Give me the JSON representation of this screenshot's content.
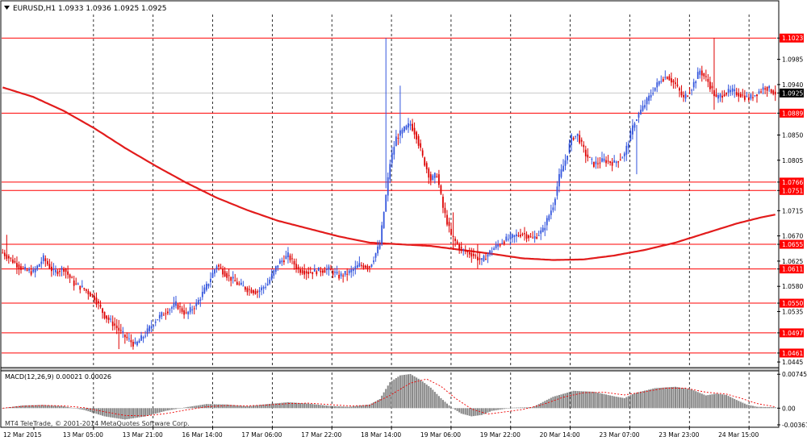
{
  "header": {
    "dropdown_icon": "triangle-down-icon",
    "title": "EURUSD,H1  1.0933 1.0936 1.0925 1.0925"
  },
  "macd": {
    "title": "MACD(12,26,9) 0.00021 0.00026",
    "axis_labels": [
      "0.00745",
      "0.00",
      "-0.00367"
    ]
  },
  "watermark": "MT4 TeleTrade, © 2001-2014 MetaQuotes Software Corp.",
  "colors": {
    "bull_candle": "#3355dd",
    "bear_candle": "#dd0000",
    "level_line": "#ff0000",
    "moving_average": "#e21c1c",
    "macd_histogram": "#888888",
    "macd_signal": "#ee0000",
    "current_price_bg": "#000000",
    "level_label_bg": "#ff0000"
  },
  "chart_data": [
    {
      "type": "candlestick",
      "symbol": "EURUSD",
      "timeframe": "H1",
      "ohlc_current": {
        "open": 1.0933,
        "high": 1.0936,
        "low": 1.0925,
        "close": 1.0925
      },
      "y_ticks": [
        1.1023,
        1.0985,
        1.094,
        1.0925,
        1.0889,
        1.085,
        1.0805,
        1.0766,
        1.0751,
        1.0715,
        1.067,
        1.0655,
        1.0625,
        1.0611,
        1.058,
        1.055,
        1.0535,
        1.0497,
        1.0461,
        1.0445
      ],
      "ylim": [
        1.0435,
        1.1065
      ],
      "x_tick_labels": [
        "12 Mar 2015",
        "13 Mar 05:00",
        "13 Mar 21:00",
        "16 Mar 14:00",
        "17 Mar 06:00",
        "17 Mar 22:00",
        "18 Mar 14:00",
        "19 Mar 06:00",
        "19 Mar 22:00",
        "20 Mar 14:00",
        "23 Mar 07:00",
        "23 Mar 23:00",
        "24 Mar 15:00"
      ],
      "horizontal_levels": [
        1.1023,
        1.0889,
        1.0766,
        1.0751,
        1.0655,
        1.0611,
        1.055,
        1.0497,
        1.0461
      ],
      "current_price": 1.0925,
      "price_path": [
        [
          0,
          1.064
        ],
        [
          5,
          1.0625
        ],
        [
          10,
          1.061
        ],
        [
          15,
          1.0605
        ],
        [
          20,
          1.063
        ],
        [
          25,
          1.0605
        ],
        [
          30,
          1.0612
        ],
        [
          35,
          1.0585
        ],
        [
          40,
          1.0575
        ],
        [
          45,
          1.056
        ],
        [
          50,
          1.0528
        ],
        [
          55,
          1.051
        ],
        [
          60,
          1.049
        ],
        [
          65,
          1.0475
        ],
        [
          70,
          1.0495
        ],
        [
          75,
          1.052
        ],
        [
          80,
          1.0535
        ],
        [
          85,
          1.0548
        ],
        [
          90,
          1.053
        ],
        [
          95,
          1.0548
        ],
        [
          100,
          1.058
        ],
        [
          105,
          1.0618
        ],
        [
          110,
          1.06
        ],
        [
          115,
          1.0585
        ],
        [
          120,
          1.0575
        ],
        [
          125,
          1.057
        ],
        [
          130,
          1.0585
        ],
        [
          135,
          1.062
        ],
        [
          140,
          1.0635
        ],
        [
          145,
          1.061
        ],
        [
          150,
          1.0605
        ],
        [
          155,
          1.0608
        ],
        [
          160,
          1.061
        ],
        [
          165,
          1.0598
        ],
        [
          170,
          1.0605
        ],
        [
          175,
          1.0618
        ],
        [
          180,
          1.0615
        ],
        [
          185,
          1.0655
        ],
        [
          190,
          1.08
        ],
        [
          193,
          1.0845
        ],
        [
          197,
          1.086
        ],
        [
          200,
          1.087
        ],
        [
          203,
          1.0848
        ],
        [
          206,
          1.081
        ],
        [
          210,
          1.077
        ],
        [
          213,
          1.078
        ],
        [
          216,
          1.072
        ],
        [
          220,
          1.067
        ],
        [
          225,
          1.0645
        ],
        [
          230,
          1.0638
        ],
        [
          235,
          1.0625
        ],
        [
          240,
          1.0645
        ],
        [
          245,
          1.066
        ],
        [
          250,
          1.0668
        ],
        [
          255,
          1.0675
        ],
        [
          260,
          1.0665
        ],
        [
          265,
          1.068
        ],
        [
          270,
          1.0725
        ],
        [
          273,
          1.0775
        ],
        [
          276,
          1.0805
        ],
        [
          279,
          1.0845
        ],
        [
          282,
          1.085
        ],
        [
          286,
          1.0815
        ],
        [
          290,
          1.0798
        ],
        [
          295,
          1.0805
        ],
        [
          300,
          1.08
        ],
        [
          305,
          1.0815
        ],
        [
          310,
          1.0875
        ],
        [
          315,
          1.0905
        ],
        [
          320,
          1.0935
        ],
        [
          323,
          1.095
        ],
        [
          326,
          1.0955
        ],
        [
          330,
          1.094
        ],
        [
          334,
          1.0915
        ],
        [
          338,
          1.0935
        ],
        [
          342,
          1.0965
        ],
        [
          346,
          1.0945
        ],
        [
          350,
          1.0915
        ],
        [
          354,
          1.0925
        ],
        [
          358,
          1.0928
        ],
        [
          362,
          1.0922
        ],
        [
          366,
          1.0915
        ],
        [
          370,
          1.0925
        ],
        [
          374,
          1.0936
        ],
        [
          379,
          1.0925
        ]
      ],
      "extreme_bars": [
        [
          188,
          1.1023,
          1.0755
        ],
        [
          195,
          1.0938,
          1.0835
        ],
        [
          221,
          1.0712,
          1.0645
        ],
        [
          233,
          1.0655,
          1.0612
        ],
        [
          57,
          1.052,
          1.0468
        ],
        [
          2,
          1.0672,
          1.0625
        ],
        [
          349,
          1.1023,
          1.0895
        ],
        [
          311,
          1.0868,
          1.078
        ]
      ],
      "moving_average": [
        [
          0,
          1.0935
        ],
        [
          15,
          1.0918
        ],
        [
          30,
          1.0893
        ],
        [
          45,
          1.0862
        ],
        [
          60,
          1.0827
        ],
        [
          75,
          1.0795
        ],
        [
          90,
          1.0765
        ],
        [
          105,
          1.0738
        ],
        [
          120,
          1.0716
        ],
        [
          135,
          1.0697
        ],
        [
          150,
          1.0683
        ],
        [
          165,
          1.0669
        ],
        [
          180,
          1.0658
        ],
        [
          195,
          1.0655
        ],
        [
          210,
          1.0652
        ],
        [
          225,
          1.0645
        ],
        [
          240,
          1.0638
        ],
        [
          255,
          1.063
        ],
        [
          270,
          1.0627
        ],
        [
          285,
          1.0628
        ],
        [
          300,
          1.0635
        ],
        [
          315,
          1.0645
        ],
        [
          330,
          1.0658
        ],
        [
          345,
          1.0675
        ],
        [
          360,
          1.0692
        ],
        [
          372,
          1.0703
        ],
        [
          379,
          1.0708
        ]
      ]
    },
    {
      "type": "bar",
      "name": "MACD(12,26,9)",
      "ylim": [
        -0.0042,
        0.0082
      ],
      "y_ticks": [
        0.00745,
        0.0,
        -0.00367
      ],
      "histogram_path": [
        [
          0,
          0.0
        ],
        [
          10,
          0.0006
        ],
        [
          20,
          0.0007
        ],
        [
          30,
          0.0004
        ],
        [
          40,
          -0.0004
        ],
        [
          50,
          -0.0018
        ],
        [
          60,
          -0.0025
        ],
        [
          70,
          -0.0018
        ],
        [
          80,
          -0.0006
        ],
        [
          90,
          0.0002
        ],
        [
          100,
          0.0009
        ],
        [
          110,
          0.0008
        ],
        [
          120,
          0.0004
        ],
        [
          130,
          0.0009
        ],
        [
          140,
          0.0013
        ],
        [
          150,
          0.001
        ],
        [
          160,
          0.0005
        ],
        [
          170,
          0.0003
        ],
        [
          180,
          0.0008
        ],
        [
          185,
          0.002
        ],
        [
          190,
          0.0057
        ],
        [
          195,
          0.0072
        ],
        [
          200,
          0.0075
        ],
        [
          205,
          0.0062
        ],
        [
          210,
          0.0045
        ],
        [
          215,
          0.0022
        ],
        [
          220,
          0.0002
        ],
        [
          225,
          -0.0012
        ],
        [
          230,
          -0.0018
        ],
        [
          235,
          -0.0015
        ],
        [
          240,
          -0.0006
        ],
        [
          250,
          0.0001
        ],
        [
          260,
          0.0002
        ],
        [
          270,
          0.0025
        ],
        [
          280,
          0.0038
        ],
        [
          290,
          0.0036
        ],
        [
          300,
          0.0026
        ],
        [
          305,
          0.0022
        ],
        [
          310,
          0.0033
        ],
        [
          320,
          0.0044
        ],
        [
          330,
          0.0047
        ],
        [
          338,
          0.0041
        ],
        [
          345,
          0.0028
        ],
        [
          350,
          0.0032
        ],
        [
          355,
          0.0029
        ],
        [
          360,
          0.0018
        ],
        [
          365,
          0.0008
        ],
        [
          370,
          0.0003
        ],
        [
          379,
          0.0002
        ]
      ],
      "signal_path": [
        [
          0,
          0.0
        ],
        [
          10,
          0.0004
        ],
        [
          20,
          0.0006
        ],
        [
          30,
          0.0005
        ],
        [
          40,
          0.0001
        ],
        [
          50,
          -0.0008
        ],
        [
          60,
          -0.0016
        ],
        [
          70,
          -0.0017
        ],
        [
          80,
          -0.0012
        ],
        [
          90,
          -0.0004
        ],
        [
          100,
          0.0003
        ],
        [
          110,
          0.0006
        ],
        [
          120,
          0.0005
        ],
        [
          130,
          0.0007
        ],
        [
          140,
          0.001
        ],
        [
          150,
          0.0011
        ],
        [
          160,
          0.0008
        ],
        [
          170,
          0.0005
        ],
        [
          180,
          0.0006
        ],
        [
          190,
          0.0028
        ],
        [
          200,
          0.0055
        ],
        [
          208,
          0.0064
        ],
        [
          215,
          0.0048
        ],
        [
          222,
          0.0022
        ],
        [
          230,
          -0.0002
        ],
        [
          238,
          -0.0013
        ],
        [
          245,
          -0.0009
        ],
        [
          255,
          -0.0003
        ],
        [
          265,
          0.0008
        ],
        [
          275,
          0.0024
        ],
        [
          285,
          0.0034
        ],
        [
          295,
          0.0035
        ],
        [
          305,
          0.0029
        ],
        [
          315,
          0.0036
        ],
        [
          325,
          0.0044
        ],
        [
          335,
          0.0044
        ],
        [
          345,
          0.0035
        ],
        [
          355,
          0.0031
        ],
        [
          362,
          0.0022
        ],
        [
          370,
          0.001
        ],
        [
          379,
          0.0003
        ]
      ]
    }
  ]
}
